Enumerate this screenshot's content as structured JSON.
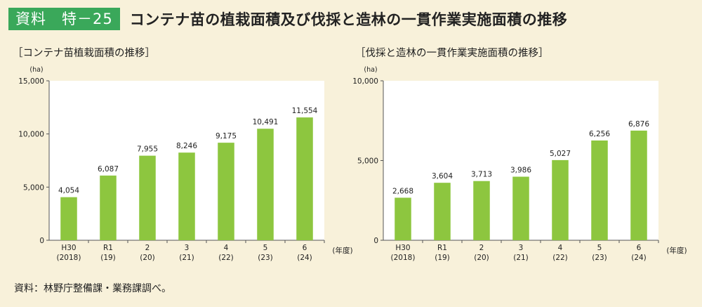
{
  "header": {
    "badge": "資料　特－25",
    "title": "コンテナ苗の植栽面積及び伐採と造林の一貫作業実施面積の推移"
  },
  "source": "資料：林野庁整備課・業務課調べ。",
  "colors": {
    "bar": "#8dc63f",
    "badge": "#3aa85a",
    "background": "#f8f1da"
  },
  "chart_data": [
    {
      "type": "bar",
      "title": "［コンテナ苗植栽面積の推移］",
      "unit": "(ha)",
      "xlabel": "(年度)",
      "categories": [
        "H30",
        "R1",
        "2",
        "3",
        "4",
        "5",
        "6"
      ],
      "categories_sub": [
        "(2018)",
        "(19)",
        "(20)",
        "(21)",
        "(22)",
        "(23)",
        "(24)"
      ],
      "values": [
        4054,
        6087,
        7955,
        8246,
        9175,
        10491,
        11554
      ],
      "value_labels": [
        "4,054",
        "6,087",
        "7,955",
        "8,246",
        "9,175",
        "10,491",
        "11,554"
      ],
      "ylim": [
        0,
        15000
      ],
      "yticks": [
        0,
        5000,
        10000,
        15000
      ],
      "ytick_labels": [
        "0",
        "5,000",
        "10,000",
        "15,000"
      ],
      "grid": false
    },
    {
      "type": "bar",
      "title": "［伐採と造林の一貫作業実施面積の推移］",
      "unit": "(ha)",
      "xlabel": "(年度)",
      "categories": [
        "H30",
        "R1",
        "2",
        "3",
        "4",
        "5",
        "6"
      ],
      "categories_sub": [
        "(2018)",
        "(19)",
        "(20)",
        "(21)",
        "(22)",
        "(23)",
        "(24)"
      ],
      "values": [
        2668,
        3604,
        3713,
        3986,
        5027,
        6256,
        6876
      ],
      "value_labels": [
        "2,668",
        "3,604",
        "3,713",
        "3,986",
        "5,027",
        "6,256",
        "6,876"
      ],
      "ylim": [
        0,
        10000
      ],
      "yticks": [
        0,
        5000,
        10000
      ],
      "ytick_labels": [
        "0",
        "5,000",
        "10,000"
      ],
      "grid": false
    }
  ]
}
